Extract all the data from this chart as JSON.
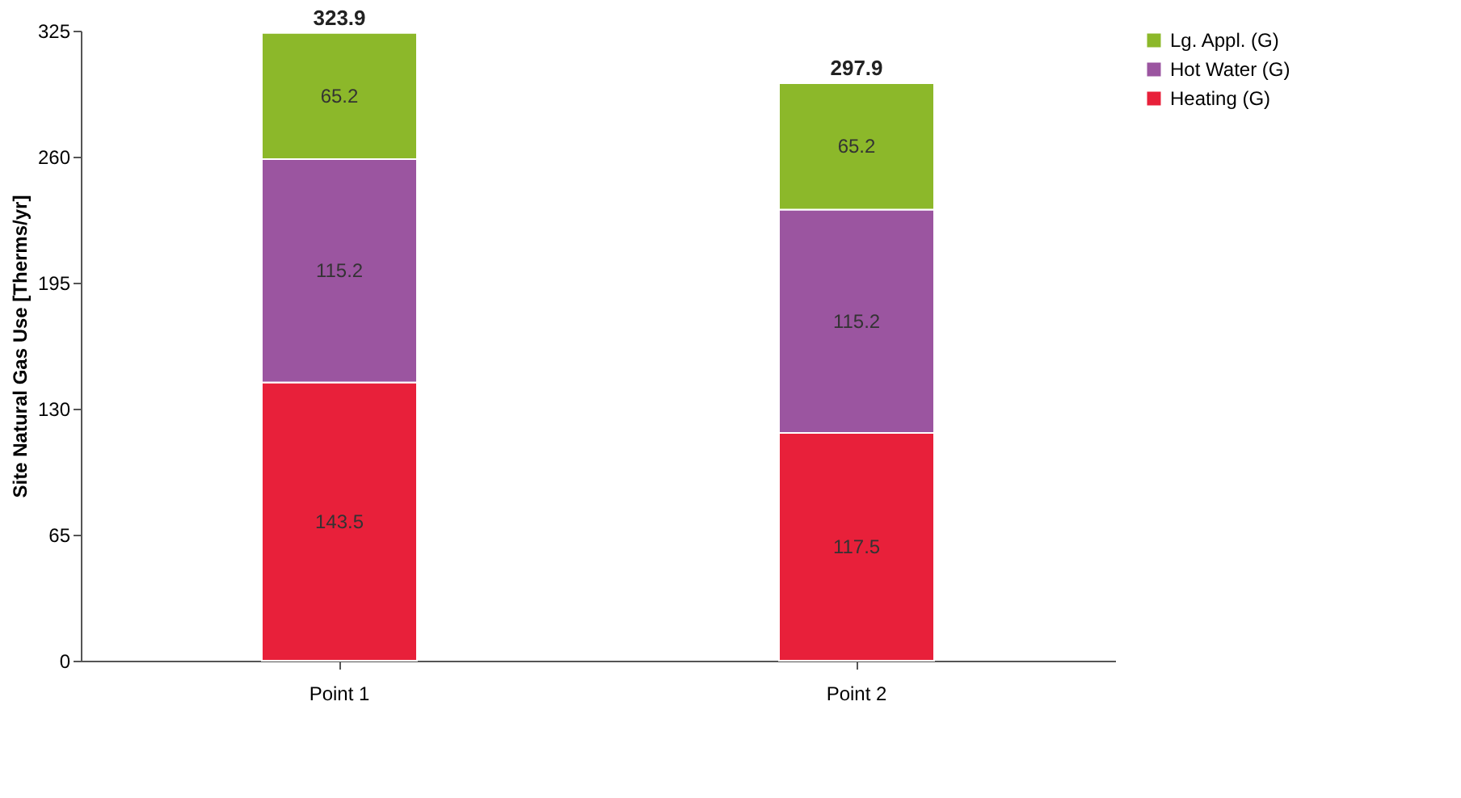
{
  "chart_data": {
    "type": "bar",
    "stacked": true,
    "ylabel": "Site Natural Gas Use [Therms/yr]",
    "categories": [
      "Point 1",
      "Point 2"
    ],
    "series": [
      {
        "name": "Heating (G)",
        "color": "#e8203a",
        "values": [
          143.5,
          117.5
        ]
      },
      {
        "name": "Hot Water (G)",
        "color": "#9b55a0",
        "values": [
          115.2,
          115.2
        ]
      },
      {
        "name": "Lg. Appl. (G)",
        "color": "#8cb82a",
        "values": [
          65.2,
          65.2
        ]
      }
    ],
    "ylim": [
      0,
      325
    ],
    "yticks": [
      0,
      65,
      130,
      195,
      260,
      325
    ],
    "data_labels": true,
    "totals": [
      "323.9",
      "297.9"
    ],
    "legend": "right",
    "grid": false
  }
}
